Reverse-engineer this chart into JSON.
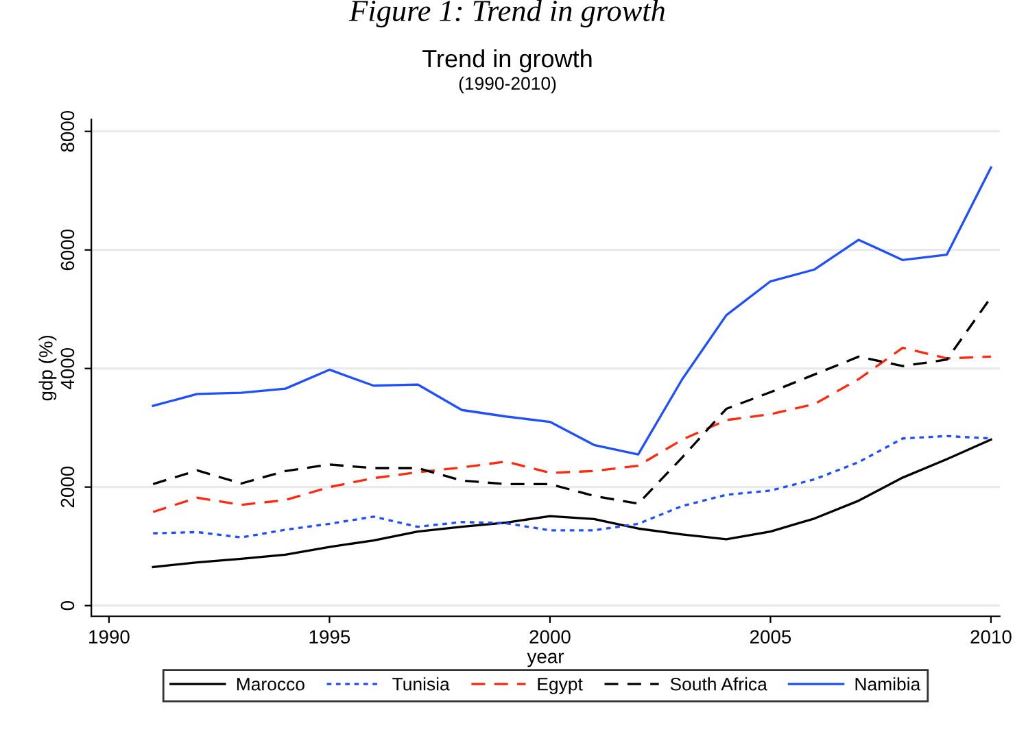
{
  "chart_data": {
    "type": "line",
    "title": "Trend in growth",
    "subtitle": "(1990-2010)",
    "annotations": [
      "Figure 1: Trend in growth"
    ],
    "xlabel": "year",
    "ylabel": "gdp (%)",
    "x": [
      1991,
      1992,
      1993,
      1994,
      1995,
      1996,
      1997,
      1998,
      1999,
      2000,
      2001,
      2002,
      2003,
      2004,
      2005,
      2006,
      2007,
      2008,
      2009,
      2010
    ],
    "series": [
      {
        "name": "Marocco",
        "color": "#000000",
        "line_style": "solid",
        "values": [
          650,
          730,
          790,
          860,
          990,
          1100,
          1250,
          1330,
          1400,
          1510,
          1460,
          1300,
          1200,
          1120,
          1250,
          1470,
          1770,
          2160,
          2470,
          2800
        ]
      },
      {
        "name": "Tunisia",
        "color": "#1f4fff",
        "line_style": "dotted",
        "values": [
          1220,
          1240,
          1150,
          1280,
          1380,
          1500,
          1330,
          1410,
          1390,
          1270,
          1270,
          1380,
          1680,
          1870,
          1940,
          2130,
          2420,
          2820,
          2860,
          2820
        ]
      },
      {
        "name": "Egypt",
        "color": "#ff2a10",
        "line_style": "dashed",
        "values": [
          1580,
          1820,
          1700,
          1780,
          2000,
          2150,
          2250,
          2330,
          2430,
          2240,
          2270,
          2360,
          2800,
          3130,
          3230,
          3400,
          3820,
          4350,
          4170,
          4200
        ]
      },
      {
        "name": "South Africa",
        "color": "#000000",
        "line_style": "dashed",
        "values": [
          2050,
          2280,
          2060,
          2270,
          2380,
          2320,
          2320,
          2110,
          2050,
          2050,
          1850,
          1720,
          2500,
          3320,
          3600,
          3900,
          4200,
          4040,
          4150,
          5200
        ]
      },
      {
        "name": "Namibia",
        "color": "#1f4fff",
        "line_style": "solid",
        "values": [
          3370,
          3570,
          3590,
          3660,
          3980,
          3710,
          3730,
          3300,
          3190,
          3100,
          2710,
          2550,
          3820,
          4900,
          5470,
          5670,
          6170,
          5830,
          5920,
          7390
        ]
      }
    ],
    "xlim": [
      1989.6,
      2010.2
    ],
    "xticks": [
      1990,
      1995,
      2000,
      2005,
      2010
    ],
    "ylim": [
      -180,
      8200
    ],
    "yticks": [
      0,
      2000,
      4000,
      6000,
      8000
    ],
    "grid": "y",
    "legend": "bottom",
    "marker": "none"
  }
}
